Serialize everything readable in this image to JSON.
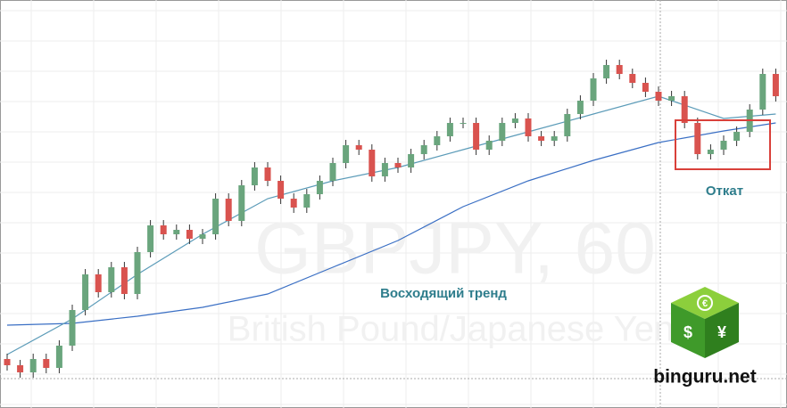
{
  "chart_data": {
    "type": "candlestick",
    "watermark": "GBPJPY, 60",
    "watermark_subtitle": "British Pound/Japanese Yen",
    "annotations": [
      "Восходящий тренд",
      "Откат"
    ],
    "logo_text": "binguru.net",
    "ylim": [
      0,
      458
    ],
    "up_color": "#6aa57d",
    "down_color": "#d9534f",
    "grid": true,
    "open": [
      55,
      48,
      40,
      55,
      45,
      70,
      110,
      150,
      130,
      158,
      128,
      175,
      205,
      195,
      200,
      190,
      195,
      235,
      210,
      250,
      270,
      255,
      235,
      225,
      240,
      255,
      275,
      295,
      290,
      260,
      275,
      270,
      285,
      295,
      305,
      320,
      320,
      290,
      300,
      320,
      325,
      305,
      300,
      305,
      330,
      345,
      370,
      385,
      375,
      365,
      355,
      345,
      350,
      320,
      285,
      290,
      300,
      310,
      335,
      375
    ],
    "high": [
      61,
      54,
      61,
      61,
      76,
      116,
      156,
      156,
      164,
      164,
      181,
      211,
      211,
      206,
      206,
      201,
      241,
      241,
      256,
      276,
      276,
      261,
      241,
      246,
      261,
      281,
      301,
      301,
      296,
      281,
      281,
      291,
      301,
      311,
      326,
      326,
      326,
      306,
      326,
      331,
      331,
      311,
      311,
      336,
      351,
      376,
      391,
      391,
      381,
      371,
      361,
      356,
      356,
      326,
      296,
      306,
      316,
      341,
      381,
      381
    ],
    "low": [
      42,
      34,
      34,
      39,
      39,
      64,
      104,
      124,
      124,
      122,
      122,
      169,
      189,
      189,
      184,
      184,
      189,
      204,
      204,
      244,
      249,
      229,
      219,
      219,
      234,
      249,
      269,
      284,
      254,
      254,
      264,
      264,
      279,
      289,
      299,
      314,
      284,
      284,
      294,
      314,
      299,
      294,
      294,
      299,
      324,
      339,
      364,
      369,
      359,
      349,
      339,
      339,
      314,
      279,
      279,
      284,
      294,
      304,
      329,
      344
    ],
    "close": [
      48,
      40,
      55,
      45,
      70,
      110,
      150,
      130,
      158,
      128,
      175,
      205,
      195,
      200,
      190,
      195,
      235,
      210,
      250,
      270,
      255,
      235,
      225,
      240,
      255,
      275,
      295,
      290,
      260,
      275,
      270,
      285,
      295,
      305,
      320,
      320,
      290,
      300,
      320,
      325,
      305,
      300,
      305,
      330,
      345,
      370,
      385,
      375,
      365,
      355,
      345,
      350,
      320,
      285,
      290,
      300,
      310,
      335,
      375,
      350
    ],
    "overlays": [
      {
        "color": "#3a6fc4",
        "x": [
          0,
          5,
          10,
          15,
          20,
          25,
          30,
          35,
          40,
          45,
          50,
          55,
          59
        ],
        "values": [
          93,
          95,
          103,
          113,
          128,
          158,
          188,
          226,
          255,
          278,
          298,
          311,
          320
        ]
      },
      {
        "color": "#5b9bb8",
        "x": [
          0,
          5,
          10,
          15,
          20,
          25,
          30,
          35,
          40,
          45,
          50,
          55,
          59
        ],
        "values": [
          60,
          100,
          150,
          195,
          235,
          255,
          270,
          290,
          310,
          330,
          350,
          325,
          330
        ]
      }
    ]
  }
}
